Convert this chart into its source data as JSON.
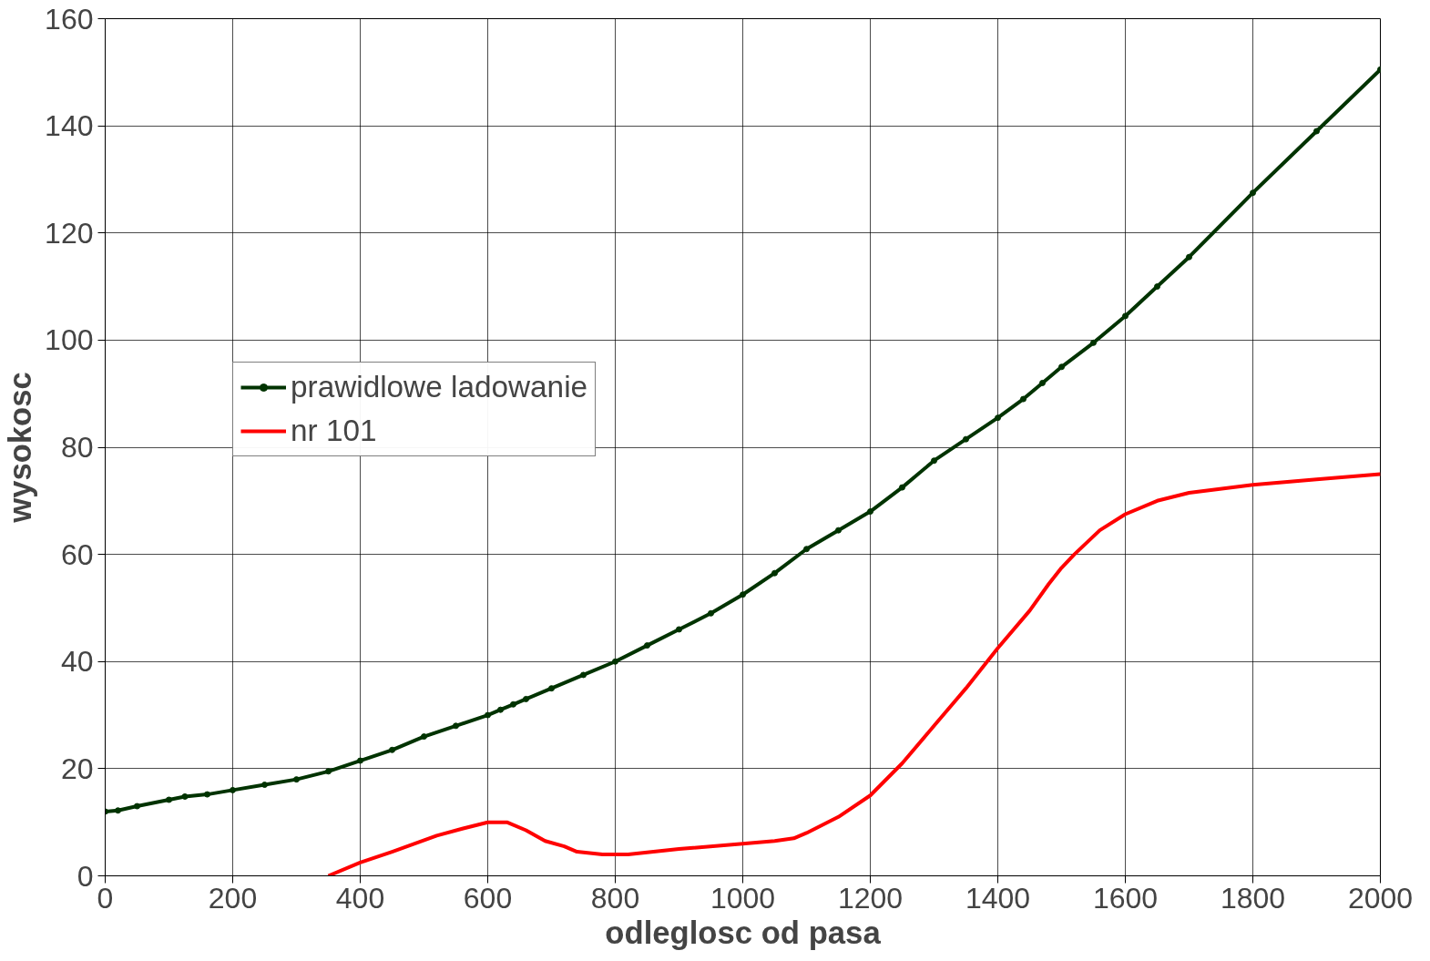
{
  "chart_data": {
    "type": "line",
    "xlabel": "odleglosc od pasa",
    "ylabel": "wysokosc",
    "xlim": [
      0,
      2000
    ],
    "xticks": [
      0,
      200,
      400,
      600,
      800,
      1000,
      1200,
      1400,
      1600,
      1800,
      2000
    ],
    "ylim": [
      0,
      160
    ],
    "yticks": [
      0,
      20,
      40,
      60,
      80,
      100,
      120,
      140,
      160
    ],
    "grid": true,
    "legend": "left",
    "line_style": "solid",
    "series": [
      {
        "name": "prawidlowe ladowanie",
        "color": "#003300",
        "marker": "circle",
        "x": [
          0,
          20,
          50,
          100,
          125,
          160,
          200,
          250,
          300,
          350,
          400,
          450,
          500,
          550,
          600,
          620,
          640,
          660,
          700,
          750,
          800,
          850,
          900,
          950,
          1000,
          1050,
          1100,
          1150,
          1200,
          1250,
          1300,
          1350,
          1400,
          1440,
          1470,
          1500,
          1550,
          1600,
          1650,
          1700,
          1800,
          1900,
          2000
        ],
        "values": [
          12,
          12.2,
          13,
          14.2,
          14.8,
          15.2,
          16,
          17,
          18,
          19.5,
          21.5,
          23.5,
          26,
          28,
          30,
          31,
          32,
          33,
          35,
          37.5,
          40,
          43,
          46,
          49,
          52.5,
          56.5,
          61,
          64.5,
          68,
          72.5,
          77.5,
          81.5,
          85.5,
          89,
          92,
          95,
          99.5,
          104.5,
          110,
          115.5,
          127.5,
          139,
          150.5
        ]
      },
      {
        "name": "nr 101",
        "color": "#ff0000",
        "marker": "none",
        "x": [
          350,
          400,
          450,
          520,
          560,
          600,
          630,
          660,
          690,
          720,
          740,
          780,
          820,
          900,
          1000,
          1050,
          1080,
          1100,
          1150,
          1200,
          1250,
          1300,
          1350,
          1400,
          1450,
          1480,
          1500,
          1520,
          1560,
          1600,
          1650,
          1700,
          1800,
          1900,
          2000
        ],
        "values": [
          0,
          2.5,
          4.5,
          7.5,
          8.8,
          10,
          10,
          8.5,
          6.5,
          5.5,
          4.5,
          4,
          4,
          5,
          6,
          6.5,
          7,
          8,
          11,
          15,
          21,
          28,
          35,
          42.5,
          49.5,
          54.5,
          57.5,
          60,
          64.5,
          67.5,
          70,
          71.5,
          73,
          74,
          75
        ]
      }
    ]
  }
}
